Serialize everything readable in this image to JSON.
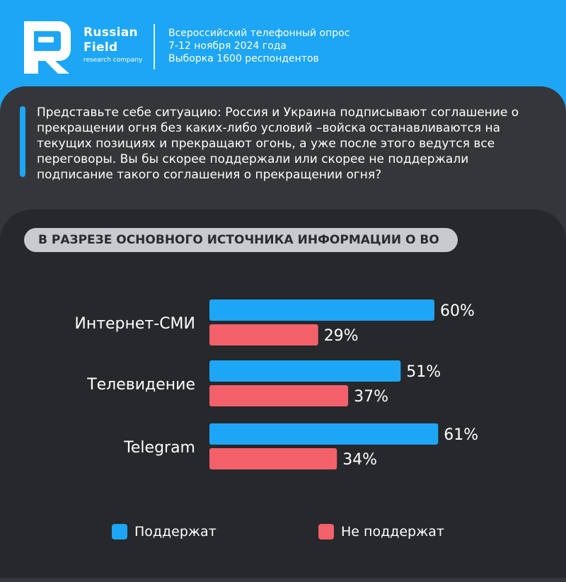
{
  "brand": {
    "name_line1": "Russian",
    "name_line2": "Field",
    "tagline": "research company"
  },
  "survey": {
    "line1": "Всероссийский телефонный опрос",
    "line2": "7-12 ноября 2024 года",
    "line3": "Выборка 1600 респондентов"
  },
  "question": "Представьте себе ситуацию: Россия и Украина подписывают соглашение о прекращении огня без каких-либо условий –войска останавливаются на текущих позициях и прекращают огонь, а уже после этого ведутся все переговоры. Вы бы скорее поддержали или скорее не поддержали подписание такого соглашения о прекращении огня?",
  "section_label": "В РАЗРЕЗЕ ОСНОВНОГО ИСТОЧНИКА ИНФОРМАЦИИ О ВО",
  "colors": {
    "support": "#1da6f5",
    "oppose": "#f2616a",
    "accent": "#1da6f5"
  },
  "chart_data": {
    "type": "bar",
    "orientation": "horizontal",
    "categories": [
      "Интернет-СМИ",
      "Телевидение",
      "Telegram"
    ],
    "series": [
      {
        "name": "Поддержат",
        "values": [
          60,
          51,
          61
        ],
        "labels": [
          "60%",
          "51%",
          "61%"
        ]
      },
      {
        "name": "Не поддержат",
        "values": [
          29,
          37,
          34
        ],
        "labels": [
          "29%",
          "37%",
          "34%"
        ]
      }
    ],
    "legend_position": "bottom",
    "grid": false
  }
}
